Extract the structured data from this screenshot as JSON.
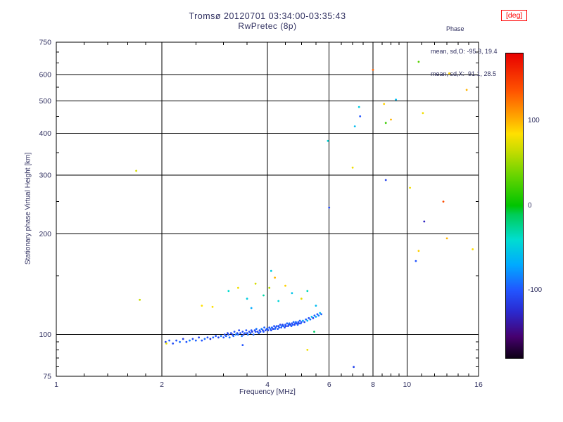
{
  "ink": "#303060",
  "chart_data": {
    "type": "scatter",
    "title": "Tromsø 20120701 03:34:00-03:35:43",
    "subtitle": "RwPretec (8p)",
    "stats": {
      "header": "Phase",
      "o": "mean, sd,O: -95.3, 19.4",
      "x": "mean, sd,X:  91.1, 28.5"
    },
    "xlabel": "Frequency [MHz]",
    "ylabel": "Stationary phase Virtual Height [km]",
    "xaxis": {
      "scale": "log",
      "min": 1,
      "max": 16,
      "ticks": [
        1,
        2,
        4,
        6,
        8,
        10,
        16
      ],
      "grid": [
        2,
        4,
        6,
        8,
        10
      ],
      "minor": [
        1.2,
        1.4,
        1.6,
        1.8,
        2.5,
        3,
        3.5,
        4.5,
        5,
        5.5,
        6.5,
        7,
        7.5,
        8.5,
        9,
        9.5,
        11,
        12,
        13,
        14,
        15
      ]
    },
    "yaxis": {
      "scale": "log",
      "min": 75,
      "max": 750,
      "ticks": [
        75,
        100,
        200,
        300,
        400,
        500,
        600,
        750
      ],
      "grid": [
        100,
        200,
        300,
        400,
        500,
        600
      ],
      "minor": [
        80,
        85,
        90,
        95,
        150,
        250,
        350,
        450,
        550,
        650,
        700
      ]
    },
    "colorbar": {
      "label": "[deg]",
      "unit": "deg",
      "min": -180,
      "max": 180,
      "ticks": [
        100,
        0,
        -100
      ],
      "stops": [
        [
          -180,
          "#0d0015"
        ],
        [
          -155,
          "#46006e"
        ],
        [
          -125,
          "#2a2ad0"
        ],
        [
          -100,
          "#2255ff"
        ],
        [
          -70,
          "#00aaff"
        ],
        [
          -40,
          "#00ddd0"
        ],
        [
          -10,
          "#00cc55"
        ],
        [
          0,
          "#00c400"
        ],
        [
          35,
          "#66d400"
        ],
        [
          65,
          "#c8dc00"
        ],
        [
          85,
          "#ffe000"
        ],
        [
          105,
          "#ffa500"
        ],
        [
          135,
          "#ff5500"
        ],
        [
          180,
          "#e80000"
        ]
      ]
    },
    "points_format": [
      "frequency_MHz",
      "virtual_height_km",
      "phase_deg"
    ],
    "points": [
      [
        2.05,
        95,
        -110
      ],
      [
        2.1,
        96,
        -95
      ],
      [
        2.15,
        94,
        -105
      ],
      [
        2.2,
        96,
        -100
      ],
      [
        2.25,
        95,
        -90
      ],
      [
        2.3,
        97,
        -115
      ],
      [
        2.35,
        95,
        -100
      ],
      [
        2.4,
        96,
        -85
      ],
      [
        2.45,
        97,
        -105
      ],
      [
        2.5,
        96,
        -95
      ],
      [
        2.55,
        98,
        -110
      ],
      [
        2.6,
        96,
        -100
      ],
      [
        2.65,
        97,
        -90
      ],
      [
        2.7,
        98,
        -105
      ],
      [
        2.75,
        97,
        -120
      ],
      [
        2.8,
        98,
        -95
      ],
      [
        2.85,
        99,
        -100
      ],
      [
        2.9,
        98,
        -110
      ],
      [
        2.95,
        99,
        -90
      ],
      [
        3.0,
        98,
        -100
      ],
      [
        3.02,
        100,
        -105
      ],
      [
        3.05,
        99,
        -95
      ],
      [
        3.08,
        101,
        -110
      ],
      [
        3.1,
        100,
        -100
      ],
      [
        3.12,
        98,
        -90
      ],
      [
        3.15,
        101,
        -105
      ],
      [
        3.18,
        100,
        -115
      ],
      [
        3.2,
        99,
        -95
      ],
      [
        3.22,
        102,
        -100
      ],
      [
        3.25,
        100,
        -85
      ],
      [
        3.28,
        101,
        -105
      ],
      [
        3.3,
        100,
        -95
      ],
      [
        3.32,
        103,
        -110
      ],
      [
        3.35,
        101,
        -100
      ],
      [
        3.38,
        99,
        -90
      ],
      [
        3.4,
        102,
        -105
      ],
      [
        3.42,
        100,
        -120
      ],
      [
        3.45,
        101,
        -95
      ],
      [
        3.48,
        103,
        -100
      ],
      [
        3.5,
        101,
        -110
      ],
      [
        3.52,
        100,
        -90
      ],
      [
        3.55,
        102,
        -105
      ],
      [
        3.58,
        101,
        -95
      ],
      [
        3.6,
        103,
        -100
      ],
      [
        3.62,
        102,
        -115
      ],
      [
        3.65,
        100,
        -95
      ],
      [
        3.68,
        103,
        -105
      ],
      [
        3.7,
        102,
        -100
      ],
      [
        3.72,
        104,
        -90
      ],
      [
        3.75,
        102,
        -110
      ],
      [
        3.78,
        101,
        -95
      ],
      [
        3.8,
        103,
        -105
      ],
      [
        3.82,
        102,
        -100
      ],
      [
        3.85,
        104,
        -85
      ],
      [
        3.88,
        103,
        -110
      ],
      [
        3.9,
        102,
        -100
      ],
      [
        3.92,
        105,
        -95
      ],
      [
        3.95,
        103,
        -105
      ],
      [
        3.98,
        104,
        -100
      ],
      [
        4.0,
        104,
        -95
      ],
      [
        4.02,
        103,
        -110
      ],
      [
        4.05,
        105,
        -100
      ],
      [
        4.08,
        104,
        -90
      ],
      [
        4.1,
        103,
        -105
      ],
      [
        4.12,
        105,
        -95
      ],
      [
        4.15,
        104,
        -115
      ],
      [
        4.18,
        106,
        -100
      ],
      [
        4.2,
        104,
        -90
      ],
      [
        4.22,
        105,
        -105
      ],
      [
        4.25,
        106,
        -95
      ],
      [
        4.28,
        104,
        -100
      ],
      [
        4.3,
        106,
        -110
      ],
      [
        4.32,
        105,
        -95
      ],
      [
        4.35,
        107,
        -105
      ],
      [
        4.38,
        105,
        -100
      ],
      [
        4.4,
        106,
        -90
      ],
      [
        4.42,
        107,
        -110
      ],
      [
        4.45,
        106,
        -95
      ],
      [
        4.48,
        105,
        -105
      ],
      [
        4.5,
        107,
        -100
      ],
      [
        4.52,
        106,
        -115
      ],
      [
        4.55,
        108,
        -95
      ],
      [
        4.58,
        106,
        -105
      ],
      [
        4.6,
        107,
        -100
      ],
      [
        4.62,
        108,
        -90
      ],
      [
        4.65,
        107,
        -110
      ],
      [
        4.68,
        106,
        -95
      ],
      [
        4.7,
        108,
        -105
      ],
      [
        4.72,
        107,
        -100
      ],
      [
        4.75,
        109,
        -95
      ],
      [
        4.78,
        107,
        -110
      ],
      [
        4.8,
        108,
        -100
      ],
      [
        4.82,
        109,
        -90
      ],
      [
        4.85,
        108,
        -105
      ],
      [
        4.88,
        107,
        -95
      ],
      [
        4.9,
        109,
        -100
      ],
      [
        4.92,
        108,
        -110
      ],
      [
        4.95,
        110,
        -95
      ],
      [
        4.98,
        108,
        -105
      ],
      [
        5.0,
        109,
        -100
      ],
      [
        5.05,
        110,
        -70
      ],
      [
        5.1,
        109,
        -110
      ],
      [
        5.15,
        111,
        -95
      ],
      [
        5.2,
        110,
        -65
      ],
      [
        5.25,
        112,
        -105
      ],
      [
        5.3,
        111,
        -90
      ],
      [
        5.35,
        113,
        -60
      ],
      [
        5.4,
        112,
        -110
      ],
      [
        5.45,
        114,
        -95
      ],
      [
        5.5,
        113,
        -70
      ],
      [
        5.55,
        115,
        -100
      ],
      [
        5.6,
        114,
        -85
      ],
      [
        5.65,
        116,
        -60
      ],
      [
        5.7,
        115,
        -95
      ],
      [
        5.44,
        102,
        -15
      ],
      [
        3.1,
        135,
        -40
      ],
      [
        3.3,
        138,
        80
      ],
      [
        3.5,
        128,
        -50
      ],
      [
        3.7,
        142,
        70
      ],
      [
        3.9,
        131,
        -30
      ],
      [
        4.05,
        138,
        60
      ],
      [
        4.3,
        126,
        -45
      ],
      [
        4.5,
        140,
        90
      ],
      [
        4.7,
        133,
        -55
      ],
      [
        5.0,
        128,
        75
      ],
      [
        5.2,
        135,
        -35
      ],
      [
        5.5,
        122,
        -60
      ],
      [
        4.2,
        148,
        100
      ],
      [
        3.6,
        120,
        -70
      ],
      [
        2.79,
        121,
        85
      ],
      [
        2.6,
        122,
        85
      ],
      [
        4.1,
        155,
        -50
      ],
      [
        2.06,
        94,
        75
      ],
      [
        5.2,
        90,
        80
      ],
      [
        3.4,
        93,
        -100
      ],
      [
        1.69,
        309,
        70
      ],
      [
        1.73,
        127,
        65
      ],
      [
        5.95,
        380,
        -45
      ],
      [
        6.0,
        240,
        -105
      ],
      [
        7.0,
        316,
        80
      ],
      [
        7.05,
        80,
        -110
      ],
      [
        8.0,
        620,
        130
      ],
      [
        7.3,
        480,
        -50
      ],
      [
        7.35,
        450,
        -100
      ],
      [
        7.1,
        420,
        -60
      ],
      [
        8.6,
        490,
        90
      ],
      [
        9.0,
        440,
        100
      ],
      [
        8.7,
        430,
        20
      ],
      [
        8.7,
        290,
        -110
      ],
      [
        10.2,
        275,
        80
      ],
      [
        10.6,
        166,
        -100
      ],
      [
        10.8,
        178,
        90
      ],
      [
        10.8,
        655,
        30
      ],
      [
        11.1,
        460,
        80
      ],
      [
        12.7,
        250,
        140
      ],
      [
        13.0,
        194,
        100
      ],
      [
        13.2,
        605,
        90
      ],
      [
        15.4,
        180,
        85
      ],
      [
        9.3,
        505,
        -60
      ],
      [
        11.2,
        218,
        -130
      ],
      [
        14.8,
        540,
        100
      ]
    ]
  }
}
